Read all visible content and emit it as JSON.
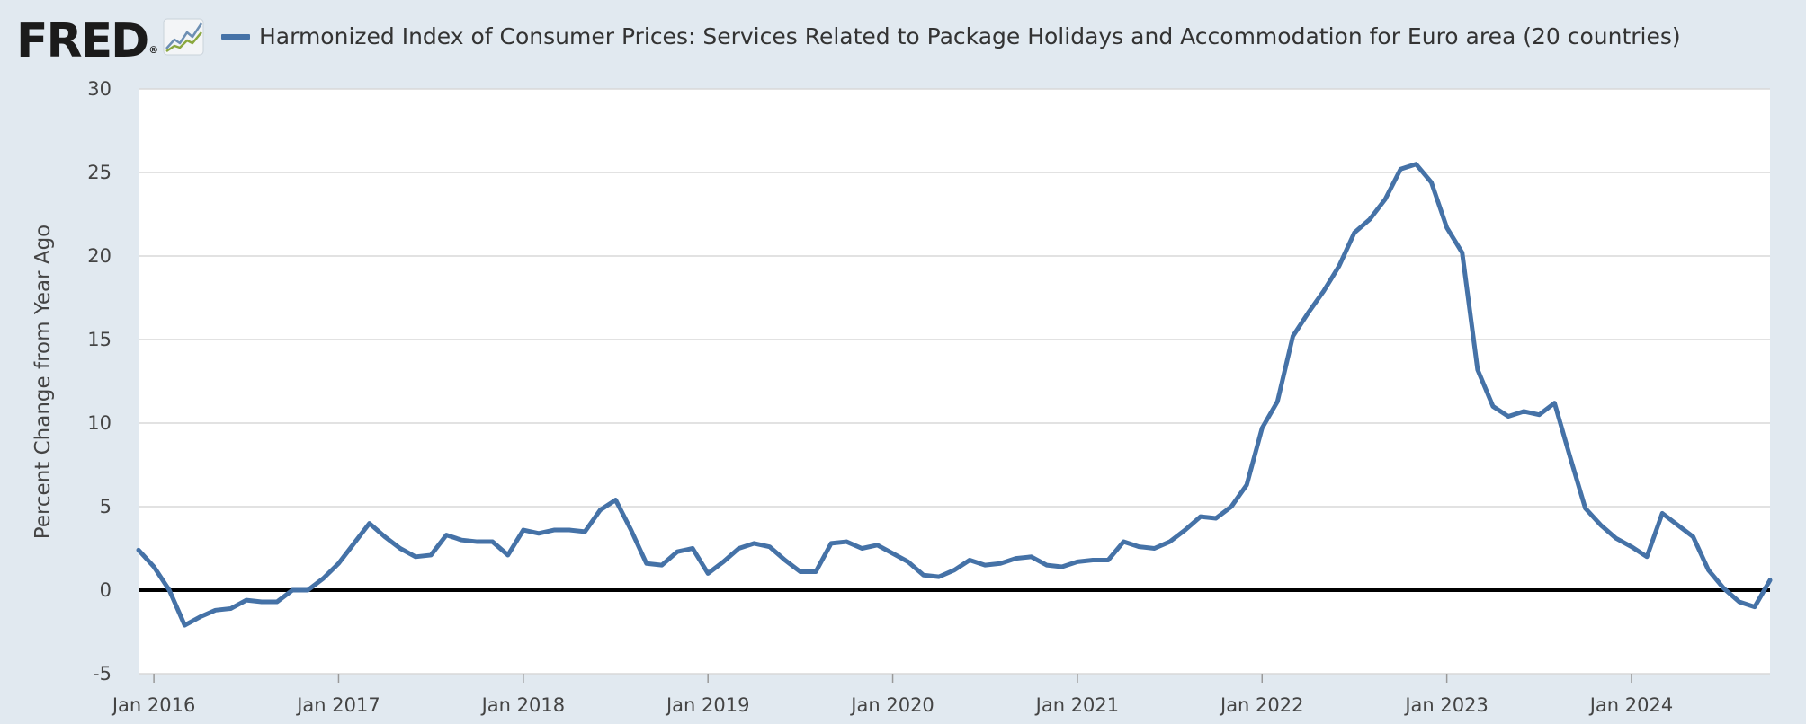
{
  "brand": {
    "logo_text": "FRED",
    "logo_mark": "®",
    "logo_icon": "line-chart-icon"
  },
  "colors": {
    "series": "#4572a7",
    "background": "#e1e9f0",
    "plot": "#ffffff",
    "gridline": "#d8d8d8",
    "zero_line": "#000000"
  },
  "chart_data": {
    "type": "line",
    "title": "Harmonized Index of Consumer Prices: Services Related to Package Holidays and Accommodation for Euro area (20 countries)",
    "xlabel": "",
    "ylabel": "Percent Change from Year Ago",
    "ylim": [
      -5,
      30
    ],
    "yticks": [
      -5,
      0,
      5,
      10,
      15,
      20,
      25,
      30
    ],
    "xlim": [
      "2015-12",
      "2024-10"
    ],
    "xticks": [
      {
        "label": "Jan 2016",
        "date": "2016-01"
      },
      {
        "label": "Jan 2017",
        "date": "2017-01"
      },
      {
        "label": "Jan 2018",
        "date": "2018-01"
      },
      {
        "label": "Jan 2019",
        "date": "2019-01"
      },
      {
        "label": "Jan 2020",
        "date": "2020-01"
      },
      {
        "label": "Jan 2021",
        "date": "2021-01"
      },
      {
        "label": "Jan 2022",
        "date": "2022-01"
      },
      {
        "label": "Jan 2023",
        "date": "2023-01"
      },
      {
        "label": "Jan 2024",
        "date": "2024-01"
      }
    ],
    "grid": true,
    "reference_line": 0,
    "series": [
      {
        "name": "Harmonized Index of Consumer Prices: Services Related to Package Holidays and Accommodation for Euro area (20 countries)",
        "start": "2015-12",
        "frequency": "monthly",
        "values": [
          2.4,
          1.4,
          0.0,
          -2.1,
          -1.6,
          -1.2,
          -1.1,
          -0.6,
          -0.7,
          -0.7,
          0.0,
          0.0,
          0.7,
          1.6,
          2.8,
          4.0,
          3.2,
          2.5,
          2.0,
          2.1,
          3.3,
          3.0,
          2.9,
          2.9,
          2.1,
          3.6,
          3.4,
          3.6,
          3.6,
          3.5,
          4.8,
          5.4,
          3.6,
          1.6,
          1.5,
          2.3,
          2.5,
          1.0,
          1.7,
          2.5,
          2.8,
          2.6,
          1.8,
          1.1,
          1.1,
          2.8,
          2.9,
          2.5,
          2.7,
          2.2,
          1.7,
          0.9,
          0.8,
          1.2,
          1.8,
          1.5,
          1.6,
          1.9,
          2.0,
          1.5,
          1.4,
          1.7,
          1.8,
          1.8,
          2.9,
          2.6,
          2.5,
          2.9,
          3.6,
          4.4,
          4.3,
          5.0,
          6.3,
          9.7,
          11.3,
          15.2,
          16.6,
          17.9,
          19.4,
          21.4,
          22.2,
          23.4,
          25.2,
          25.5,
          24.4,
          21.7,
          20.2,
          13.2,
          11.0,
          10.4,
          10.7,
          10.5,
          11.2,
          8.0,
          4.9,
          3.9,
          3.1,
          2.6,
          2.0,
          4.6,
          3.9,
          3.2,
          1.2,
          0.1,
          -0.7,
          -1.0,
          0.6
        ]
      }
    ]
  }
}
